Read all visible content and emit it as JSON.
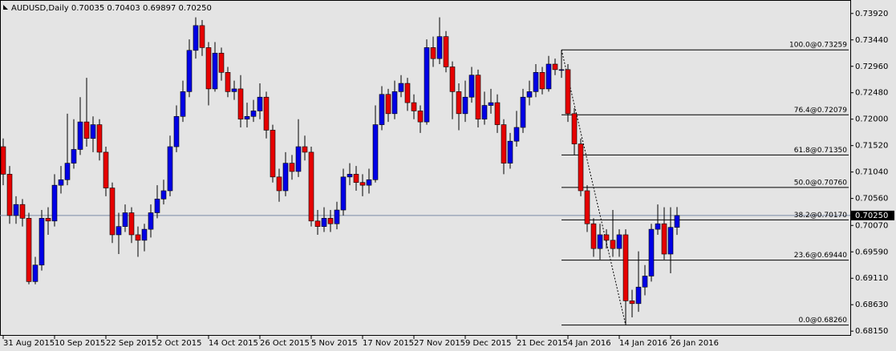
{
  "chart_data": {
    "type": "candlestick",
    "title": "AUDUSD,Daily  0.70035 0.70403 0.69897 0.70250",
    "categories": [
      "31 Aug 2015",
      null,
      null,
      null,
      null,
      null,
      null,
      null,
      "10 Sep 2015",
      null,
      null,
      null,
      null,
      null,
      null,
      null,
      "22 Sep 2015",
      null,
      null,
      null,
      null,
      null,
      null,
      null,
      "2 Oct 2015",
      null,
      null,
      null,
      null,
      null,
      null,
      null,
      "14 Oct 2015",
      null,
      null,
      null,
      null,
      null,
      null,
      null,
      "26 Oct 2015",
      null,
      null,
      null,
      null,
      null,
      null,
      null,
      "5 Nov 2015",
      null,
      null,
      null,
      null,
      null,
      null,
      null,
      "17 Nov 2015",
      null,
      null,
      null,
      null,
      null,
      null,
      null,
      "27 Nov 2015",
      null,
      null,
      null,
      null,
      null,
      null,
      null,
      "9 Dec 2015",
      null,
      null,
      null,
      null,
      null,
      null,
      null,
      "21 Dec 2015",
      null,
      null,
      null,
      null,
      null,
      null,
      null,
      "4 Jan 2016",
      null,
      null,
      null,
      null,
      null,
      null,
      null,
      "14 Jan 2016",
      null,
      null,
      null,
      null,
      null,
      null,
      null,
      "26 Jan 2016",
      null
    ],
    "open": [
      0.715,
      0.71,
      0.7025,
      0.7045,
      0.702,
      0.6905,
      0.6935,
      0.702,
      0.7015,
      0.708,
      0.709,
      0.712,
      0.7145,
      0.7195,
      0.7165,
      0.719,
      0.714,
      0.7075,
      0.699,
      0.7005,
      0.703,
      0.699,
      0.698,
      0.7,
      0.703,
      0.7055,
      0.707,
      0.715,
      0.7205,
      0.725,
      0.7325,
      0.737,
      0.733,
      0.7255,
      0.732,
      0.7285,
      0.725,
      0.7255,
      0.72,
      0.7205,
      0.7215,
      0.724,
      0.718,
      0.7095,
      0.707,
      0.712,
      0.7105,
      0.715,
      0.714,
      0.7015,
      0.7005,
      0.702,
      0.701,
      0.7035,
      0.7095,
      0.71,
      0.7085,
      0.708,
      0.709,
      0.719,
      0.7245,
      0.721,
      0.725,
      0.7265,
      0.723,
      0.7215,
      0.7195,
      0.733,
      0.731,
      0.735,
      0.7295,
      0.725,
      0.721,
      0.724,
      0.728,
      0.72,
      0.7225,
      0.723,
      0.719,
      0.712,
      0.716,
      0.7185,
      0.724,
      0.725,
      0.7285,
      0.7255,
      0.73,
      0.729,
      0.729,
      0.721,
      0.7155,
      0.707,
      0.701,
      0.6965,
      0.699,
      0.698,
      0.6965,
      0.699,
      0.687,
      0.6865,
      0.6895,
      0.6915,
      0.7,
      0.701,
      0.6955,
      0.70035
    ],
    "high": [
      0.7165,
      0.7115,
      0.706,
      0.7055,
      0.703,
      0.695,
      0.7035,
      0.704,
      0.71,
      0.7115,
      0.721,
      0.72,
      0.724,
      0.7275,
      0.7205,
      0.72,
      0.715,
      0.7085,
      0.703,
      0.7045,
      0.704,
      0.7005,
      0.701,
      0.7045,
      0.708,
      0.709,
      0.717,
      0.7225,
      0.727,
      0.7345,
      0.7385,
      0.738,
      0.734,
      0.734,
      0.733,
      0.7295,
      0.727,
      0.728,
      0.723,
      0.7235,
      0.7265,
      0.725,
      0.719,
      0.711,
      0.714,
      0.7135,
      0.72,
      0.717,
      0.715,
      0.7035,
      0.704,
      0.7035,
      0.705,
      0.711,
      0.712,
      0.7115,
      0.71,
      0.711,
      0.7225,
      0.726,
      0.7255,
      0.727,
      0.728,
      0.7275,
      0.7245,
      0.7225,
      0.7345,
      0.735,
      0.7385,
      0.736,
      0.7305,
      0.7265,
      0.727,
      0.7295,
      0.729,
      0.725,
      0.7255,
      0.7245,
      0.72,
      0.7175,
      0.7215,
      0.7255,
      0.727,
      0.73,
      0.7295,
      0.7315,
      0.731,
      0.73259,
      0.73,
      0.722,
      0.7165,
      0.708,
      0.702,
      0.701,
      0.7,
      0.7035,
      0.7,
      0.7,
      0.689,
      0.696,
      0.6935,
      0.701,
      0.7045,
      0.704,
      0.704,
      0.70403
    ],
    "low": [
      0.708,
      0.701,
      0.701,
      0.7005,
      0.69,
      0.69,
      0.6925,
      0.699,
      0.7005,
      0.7065,
      0.708,
      0.711,
      0.7135,
      0.715,
      0.714,
      0.7125,
      0.706,
      0.6975,
      0.6955,
      0.6995,
      0.6975,
      0.695,
      0.696,
      0.6985,
      0.702,
      0.7045,
      0.706,
      0.714,
      0.7195,
      0.724,
      0.731,
      0.7315,
      0.7225,
      0.725,
      0.727,
      0.724,
      0.7235,
      0.7185,
      0.7185,
      0.7195,
      0.72,
      0.7165,
      0.7085,
      0.705,
      0.706,
      0.709,
      0.7095,
      0.7125,
      0.7005,
      0.699,
      0.6995,
      0.6995,
      0.7,
      0.7025,
      0.708,
      0.707,
      0.706,
      0.7065,
      0.7085,
      0.718,
      0.7195,
      0.72,
      0.724,
      0.7215,
      0.72,
      0.7175,
      0.719,
      0.7295,
      0.73,
      0.7285,
      0.72,
      0.718,
      0.7195,
      0.723,
      0.7185,
      0.719,
      0.721,
      0.7175,
      0.71,
      0.711,
      0.715,
      0.7175,
      0.7225,
      0.724,
      0.7245,
      0.725,
      0.728,
      0.7275,
      0.7195,
      0.7135,
      0.706,
      0.6995,
      0.695,
      0.6945,
      0.6965,
      0.695,
      0.695,
      0.6826,
      0.684,
      0.685,
      0.688,
      0.6905,
      0.699,
      0.6945,
      0.692,
      0.69897
    ],
    "close": [
      0.71,
      0.7025,
      0.7045,
      0.702,
      0.6905,
      0.6935,
      0.702,
      0.7015,
      0.708,
      0.709,
      0.712,
      0.7145,
      0.7195,
      0.7165,
      0.719,
      0.714,
      0.7075,
      0.699,
      0.7005,
      0.703,
      0.699,
      0.698,
      0.7,
      0.703,
      0.7055,
      0.707,
      0.715,
      0.7205,
      0.725,
      0.7325,
      0.737,
      0.733,
      0.7255,
      0.732,
      0.7285,
      0.725,
      0.7255,
      0.72,
      0.7205,
      0.7215,
      0.724,
      0.718,
      0.7095,
      0.707,
      0.712,
      0.7105,
      0.715,
      0.714,
      0.7015,
      0.7005,
      0.702,
      0.701,
      0.7035,
      0.7095,
      0.71,
      0.7085,
      0.708,
      0.709,
      0.719,
      0.7245,
      0.721,
      0.725,
      0.7265,
      0.723,
      0.7215,
      0.7195,
      0.733,
      0.731,
      0.735,
      0.7295,
      0.725,
      0.721,
      0.724,
      0.728,
      0.72,
      0.7225,
      0.723,
      0.719,
      0.712,
      0.716,
      0.7185,
      0.724,
      0.725,
      0.7285,
      0.7255,
      0.73,
      0.729,
      0.729,
      0.721,
      0.7155,
      0.707,
      0.701,
      0.6965,
      0.699,
      0.698,
      0.6965,
      0.699,
      0.687,
      0.6865,
      0.6895,
      0.6915,
      0.7,
      0.701,
      0.6955,
      0.70035,
      0.7025
    ],
    "up_color": "#0000e6",
    "down_color": "#e60000",
    "ylim": [
      0.6808,
      0.7415
    ],
    "yticks": [
      {
        "value": 0.7392,
        "label": "0.73920"
      },
      {
        "value": 0.7344,
        "label": "0.73440"
      },
      {
        "value": 0.7296,
        "label": "0.72960"
      },
      {
        "value": 0.7248,
        "label": "0.72480"
      },
      {
        "value": 0.72,
        "label": "0.72000"
      },
      {
        "value": 0.7152,
        "label": "0.71520"
      },
      {
        "value": 0.7104,
        "label": "0.71040"
      },
      {
        "value": 0.7056,
        "label": "0.70560"
      },
      {
        "value": 0.7007,
        "label": "0.70070"
      },
      {
        "value": 0.6959,
        "label": "0.69590"
      },
      {
        "value": 0.6911,
        "label": "0.69110"
      },
      {
        "value": 0.6863,
        "label": "0.68630"
      },
      {
        "value": 0.6815,
        "label": "0.68150"
      }
    ],
    "current_price": {
      "value": 0.7025,
      "label": "0.70250"
    },
    "fibonacci": [
      {
        "value": 0.73259,
        "label": "100.0@0.73259"
      },
      {
        "value": 0.72079,
        "label": "76.4@0.72079"
      },
      {
        "value": 0.7135,
        "label": "61.8@0.71350"
      },
      {
        "value": 0.7076,
        "label": "50.0@0.70760"
      },
      {
        "value": 0.7017,
        "label": "38.2@0.70170"
      },
      {
        "value": 0.6944,
        "label": "23.6@0.69440"
      },
      {
        "value": 0.6826,
        "label": "0.0@0.68260"
      }
    ]
  }
}
